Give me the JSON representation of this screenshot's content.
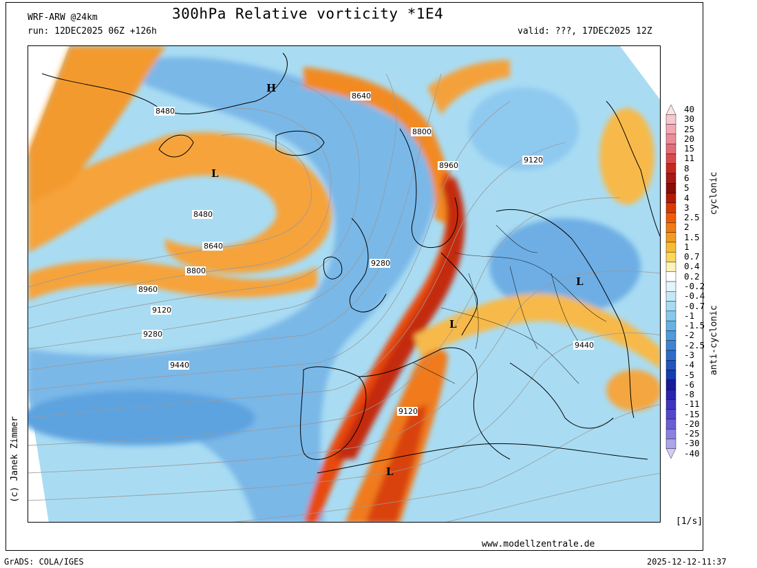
{
  "header": {
    "model": "WRF-ARW @24km",
    "title": "300hPa Relative vorticity *1E4",
    "run": "run: 12DEC2025 06Z +126h",
    "valid": "valid: ???, 17DEC2025 12Z"
  },
  "footer": {
    "grads": "GrADS: COLA/IGES",
    "website": "www.modellzentrale.de",
    "timestamp": "2025-12-12-11:37",
    "copyright": "(c) Janek Zimmer"
  },
  "colorbar": {
    "unit": "[1/s]",
    "cyclonic_label": "cyclonic",
    "anticyclonic_label": "anti-cyclonic",
    "levels": [
      "40",
      "30",
      "25",
      "20",
      "15",
      "11",
      "8",
      "6",
      "5",
      "4",
      "3",
      "2.5",
      "2",
      "1.5",
      "1",
      "0.7",
      "0.4",
      "0.2",
      "-0.2",
      "-0.4",
      "-0.7",
      "-1",
      "-1.5",
      "-2",
      "-2.5",
      "-3",
      "-4",
      "-5",
      "-6",
      "-8",
      "-11",
      "-15",
      "-20",
      "-25",
      "-30",
      "-40"
    ],
    "colors": [
      "#fbe2e8",
      "#f7c7d0",
      "#f2a9b4",
      "#ec8c97",
      "#e36d77",
      "#d84b4d",
      "#c22a20",
      "#a51a12",
      "#8a0e08",
      "#b31a06",
      "#d93a06",
      "#ef5c09",
      "#f27a12",
      "#f59a1e",
      "#f9bb2f",
      "#fbd75a",
      "#fdf2b8",
      "#ffffff",
      "#e4f4fb",
      "#c5e8f7",
      "#a6dbf2",
      "#87c9ec",
      "#68b2e3",
      "#4f9bdb",
      "#3e84d2",
      "#2f6cc8",
      "#2154bd",
      "#163db0",
      "#1a1a9a",
      "#2b24b0",
      "#3e36c2",
      "#5248cc",
      "#6b5fd6",
      "#8a80e0",
      "#ada4ea",
      "#d2ccf3"
    ]
  },
  "map": {
    "contour_labels": [
      "8480",
      "8480",
      "8640",
      "8640",
      "8800",
      "8800",
      "8960",
      "8960",
      "9120",
      "9120",
      "9120",
      "9280",
      "9280",
      "9440",
      "9440"
    ],
    "pressure_labels": [
      "H",
      "L",
      "L",
      "L",
      "L"
    ]
  }
}
